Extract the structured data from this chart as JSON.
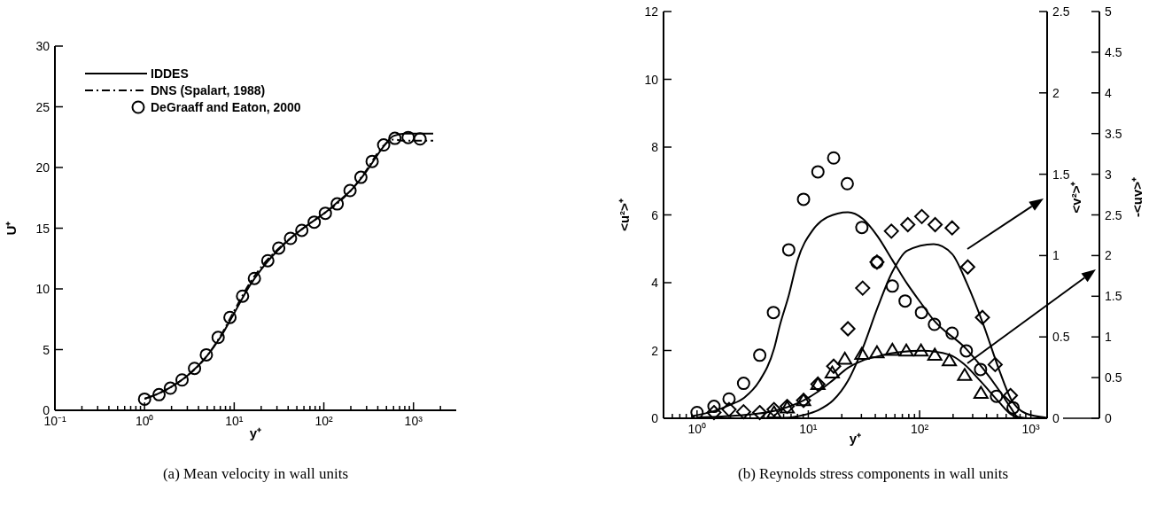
{
  "chart_data": [
    {
      "type": "line",
      "title": "(a)  Mean velocity in wall units",
      "xlabel": "y⁺",
      "ylabel": "U⁺",
      "log": "x",
      "legend": "top left",
      "xlim": [
        0.1,
        3000
      ],
      "ylim": [
        0,
        30
      ],
      "xticks": [
        {
          "value": 0.1,
          "label": "10⁻¹"
        },
        {
          "value": 0.2,
          "label": null
        },
        {
          "value": 0.3,
          "label": null
        },
        {
          "value": 0.4,
          "label": null
        },
        {
          "value": 0.5,
          "label": null
        },
        {
          "value": 0.6,
          "label": null
        },
        {
          "value": 0.7,
          "label": null
        },
        {
          "value": 0.8,
          "label": null
        },
        {
          "value": 0.9,
          "label": null
        },
        {
          "value": 1,
          "label": "10⁰"
        },
        {
          "value": 2,
          "label": null
        },
        {
          "value": 3,
          "label": null
        },
        {
          "value": 4,
          "label": null
        },
        {
          "value": 5,
          "label": null
        },
        {
          "value": 6,
          "label": null
        },
        {
          "value": 7,
          "label": null
        },
        {
          "value": 8,
          "label": null
        },
        {
          "value": 9,
          "label": null
        },
        {
          "value": 10,
          "label": "10¹"
        },
        {
          "value": 20,
          "label": null
        },
        {
          "value": 30,
          "label": null
        },
        {
          "value": 40,
          "label": null
        },
        {
          "value": 50,
          "label": null
        },
        {
          "value": 60,
          "label": null
        },
        {
          "value": 70,
          "label": null
        },
        {
          "value": 80,
          "label": null
        },
        {
          "value": 90,
          "label": null
        },
        {
          "value": 100,
          "label": "10²"
        },
        {
          "value": 200,
          "label": null
        },
        {
          "value": 300,
          "label": null
        },
        {
          "value": 400,
          "label": null
        },
        {
          "value": 500,
          "label": null
        },
        {
          "value": 600,
          "label": null
        },
        {
          "value": 700,
          "label": null
        },
        {
          "value": 800,
          "label": null
        },
        {
          "value": 900,
          "label": null
        },
        {
          "value": 1000,
          "label": "10³"
        },
        {
          "value": 2000,
          "label": null
        }
      ],
      "yticks": [
        0,
        5,
        10,
        15,
        20,
        25,
        30
      ],
      "series": [
        {
          "name": "IDDES",
          "color": "#000000",
          "line_style": "solid",
          "marker": "none",
          "x": [
            1,
            1.5,
            2,
            3,
            5,
            7,
            10,
            15,
            20,
            30,
            50,
            70,
            100,
            150,
            200,
            300,
            450,
            600,
            800,
            1660
          ],
          "values": [
            0.95,
            1.45,
            1.95,
            2.85,
            4.5,
            6.0,
            8.0,
            10.3,
            11.6,
            13.1,
            14.6,
            15.4,
            16.2,
            17.3,
            18.1,
            19.7,
            21.6,
            22.6,
            22.8,
            22.8
          ]
        },
        {
          "name": "DNS (Spalart, 1988)",
          "color": "#000000",
          "line_style": "dashdot",
          "marker": "none",
          "x": [
            1,
            1.5,
            2,
            3,
            5,
            7,
            10,
            15,
            20,
            30,
            50,
            70,
            100,
            150,
            200,
            300,
            450,
            600,
            800,
            1660
          ],
          "values": [
            0.95,
            1.45,
            1.95,
            2.85,
            4.5,
            6.1,
            8.2,
            10.5,
            11.8,
            13.2,
            14.6,
            15.4,
            16.2,
            17.2,
            18.1,
            19.8,
            21.7,
            22.3,
            22.2,
            22.2
          ]
        },
        {
          "name": "DeGraaff and Eaton, 2000",
          "type": "scatter",
          "color": "#000000",
          "marker": "circle",
          "x": [
            1.0,
            1.45,
            1.94,
            2.62,
            3.61,
            4.89,
            6.62,
            8.97,
            12.4,
            16.8,
            23.7,
            31.4,
            42.5,
            56.8,
            78.1,
            104,
            141,
            196,
            259,
            346,
            465,
            621,
            873,
            1183
          ],
          "values": [
            0.92,
            1.29,
            1.82,
            2.5,
            3.45,
            4.57,
            6.0,
            7.65,
            9.4,
            10.86,
            12.32,
            13.36,
            14.16,
            14.82,
            15.5,
            16.23,
            17.0,
            18.1,
            19.19,
            20.5,
            21.86,
            22.4,
            22.47,
            22.35
          ]
        }
      ]
    },
    {
      "type": "line",
      "title": "(b)  Reynolds stress components in wall units",
      "xlabel": "y⁺",
      "ylabel": "<u²>⁺",
      "y2label": "<v²>⁺",
      "y3label": "-<uv>⁺",
      "log": "x",
      "xlim": [
        0.5,
        1400
      ],
      "ylim": [
        0,
        12
      ],
      "y2lim": [
        0,
        2.5
      ],
      "y3lim": [
        0,
        5
      ],
      "xticks": [
        {
          "value": 0.6,
          "label": null
        },
        {
          "value": 0.7,
          "label": null
        },
        {
          "value": 0.8,
          "label": null
        },
        {
          "value": 0.9,
          "label": null
        },
        {
          "value": 1,
          "label": "10⁰"
        },
        {
          "value": 2,
          "label": null
        },
        {
          "value": 3,
          "label": null
        },
        {
          "value": 4,
          "label": null
        },
        {
          "value": 5,
          "label": null
        },
        {
          "value": 6,
          "label": null
        },
        {
          "value": 7,
          "label": null
        },
        {
          "value": 8,
          "label": null
        },
        {
          "value": 9,
          "label": null
        },
        {
          "value": 10,
          "label": "10¹"
        },
        {
          "value": 20,
          "label": null
        },
        {
          "value": 30,
          "label": null
        },
        {
          "value": 40,
          "label": null
        },
        {
          "value": 50,
          "label": null
        },
        {
          "value": 60,
          "label": null
        },
        {
          "value": 70,
          "label": null
        },
        {
          "value": 80,
          "label": null
        },
        {
          "value": 90,
          "label": null
        },
        {
          "value": 100,
          "label": "10²"
        },
        {
          "value": 200,
          "label": null
        },
        {
          "value": 300,
          "label": null
        },
        {
          "value": 400,
          "label": null
        },
        {
          "value": 500,
          "label": null
        },
        {
          "value": 600,
          "label": null
        },
        {
          "value": 700,
          "label": null
        },
        {
          "value": 800,
          "label": null
        },
        {
          "value": 900,
          "label": null
        },
        {
          "value": 1000,
          "label": "10³"
        }
      ],
      "yticks": [
        0,
        2,
        4,
        6,
        8,
        10,
        12
      ],
      "y2ticks": [
        0,
        0.5,
        1,
        1.5,
        2,
        2.5
      ],
      "y3ticks": [
        0,
        0.5,
        1,
        1.5,
        2,
        2.5,
        3,
        3.5,
        4,
        4.5,
        5
      ],
      "series": [
        {
          "axis": "y",
          "color": "#000000",
          "line_style": "solid",
          "marker": "none",
          "x": [
            0.885,
            1.44,
            1.96,
            2.66,
            3.62,
            4.92,
            5.56,
            6.67,
            8.02,
            10.9,
            14.8,
            22.7,
            30.8,
            41.9,
            56.9,
            77.3,
            105,
            132,
            262,
            377,
            517,
            660,
            765,
            950
          ],
          "values": [
            0.06,
            0.22,
            0.39,
            0.61,
            1.09,
            2.05,
            2.75,
            3.62,
            4.67,
            5.54,
            5.93,
            6.08,
            5.89,
            5.37,
            4.67,
            3.97,
            3.36,
            2.92,
            2.05,
            1.44,
            0.83,
            0.31,
            0.04,
            0
          ]
        },
        {
          "axis": "y2",
          "color": "#000000",
          "line_style": "solid",
          "marker": "none",
          "x": [
            3.62,
            6.67,
            9.06,
            12.3,
            16.7,
            22.7,
            30.8,
            41.9,
            56.9,
            77.3,
            134,
            196,
            266,
            377,
            517,
            660,
            900,
            1370
          ],
          "values": [
            0,
            0.004,
            0.02,
            0.05,
            0.11,
            0.23,
            0.43,
            0.68,
            0.9,
            1.03,
            1.07,
            1.01,
            0.83,
            0.57,
            0.3,
            0.12,
            0.03,
            0.004
          ]
        },
        {
          "axis": "y3",
          "color": "#000000",
          "line_style": "solid",
          "marker": "none",
          "x": [
            1.0,
            2.66,
            4.92,
            9.06,
            12.3,
            16.7,
            22.7,
            30.8,
            41.9,
            56.9,
            105,
            186,
            249,
            356,
            517,
            660,
            765
          ],
          "values": [
            0.01,
            0.04,
            0.09,
            0.22,
            0.33,
            0.47,
            0.62,
            0.71,
            0.76,
            0.8,
            0.83,
            0.78,
            0.67,
            0.45,
            0.2,
            0.05,
            0.01
          ]
        },
        {
          "type": "scatter",
          "axis": "y",
          "color": "#000000",
          "marker": "circle",
          "x": [
            1.0,
            1.42,
            1.94,
            2.62,
            3.66,
            4.86,
            6.67,
            9.06,
            12.2,
            16.9,
            22.4,
            30.3,
            41.4,
            56.9,
            74.1,
            104,
            136,
            196,
            263,
            353,
            491,
            692
          ],
          "values": [
            0.17,
            0.35,
            0.57,
            1.03,
            1.86,
            3.12,
            4.97,
            6.46,
            7.27,
            7.68,
            6.92,
            5.63,
            4.6,
            3.9,
            3.46,
            3.12,
            2.77,
            2.51,
            1.99,
            1.44,
            0.65,
            0.31
          ]
        },
        {
          "type": "scatter",
          "axis": "y2",
          "color": "#000000",
          "marker": "diamond",
          "x": [
            1.42,
            1.94,
            2.62,
            3.66,
            4.92,
            6.46,
            9.06,
            12.2,
            16.9,
            22.7,
            30.8,
            41.4,
            55.8,
            78.4,
            104.7,
            138,
            196,
            271,
            367,
            478,
            655
          ],
          "values": [
            0.035,
            0.054,
            0.04,
            0.035,
            0.054,
            0.073,
            0.11,
            0.21,
            0.32,
            0.55,
            0.8,
            0.96,
            1.15,
            1.19,
            1.24,
            1.19,
            1.17,
            0.93,
            0.62,
            0.33,
            0.14
          ]
        },
        {
          "type": "scatter",
          "axis": "y3",
          "color": "#000000",
          "marker": "triangle",
          "x": [
            4.92,
            6.46,
            9.06,
            12.2,
            16.4,
            21.3,
            30.3,
            41.4,
            56.9,
            76.0,
            103,
            137,
            185,
            254,
            356
          ],
          "values": [
            0.07,
            0.13,
            0.22,
            0.42,
            0.56,
            0.73,
            0.79,
            0.81,
            0.84,
            0.83,
            0.83,
            0.78,
            0.71,
            0.53,
            0.31
          ]
        }
      ]
    }
  ]
}
